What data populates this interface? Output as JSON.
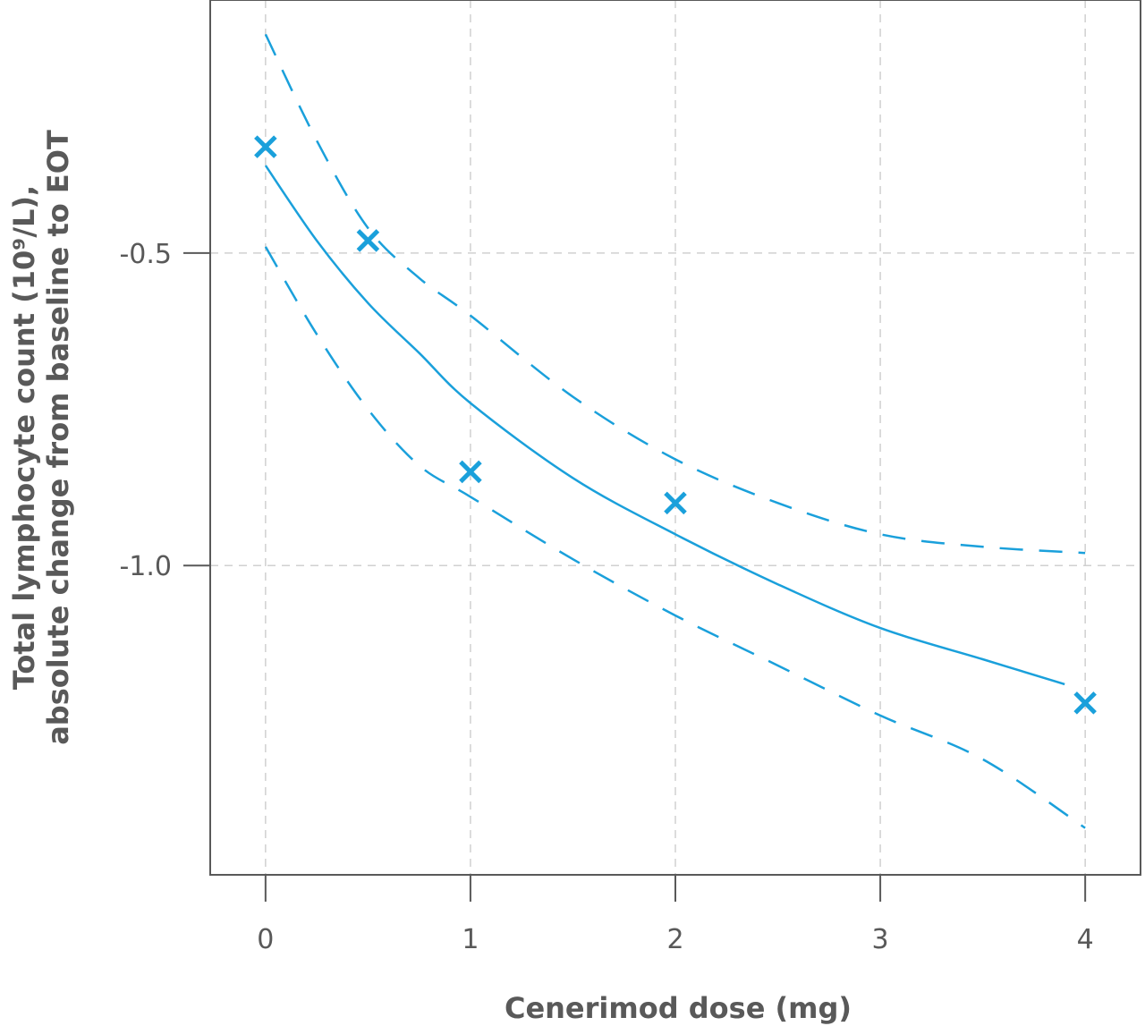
{
  "chart_data": {
    "type": "line",
    "xlabel": "Cenerimod dose (mg)",
    "ylabel": {
      "line1": "Total lymphocyte count (10⁹/L),",
      "line2": "absolute change from baseline to EOT"
    },
    "xlim": [
      -0.27,
      4.27
    ],
    "ylim": [
      -1.495,
      -0.095
    ],
    "x_ticks": [
      0,
      1,
      2,
      3,
      4
    ],
    "x_tick_labels": [
      "0",
      "1",
      "2",
      "3",
      "4"
    ],
    "y_ticks": [
      -0.5,
      -1.0
    ],
    "y_tick_labels": [
      "-0.5",
      "-1.0"
    ],
    "grid": true,
    "colors": {
      "series": "#1aa0db",
      "axis": "#595959",
      "grid": "#d0d0d0"
    },
    "observed": {
      "marker": "x",
      "x": [
        0,
        0.5,
        1,
        2,
        4
      ],
      "y": [
        -0.33,
        -0.48,
        -0.85,
        -0.9,
        -1.22
      ]
    },
    "fit": {
      "style": "solid",
      "x": [
        0,
        0.25,
        0.5,
        0.75,
        1,
        1.5,
        2,
        2.5,
        3,
        3.5,
        3.9
      ],
      "y": [
        -0.36,
        -0.48,
        -0.58,
        -0.66,
        -0.74,
        -0.86,
        -0.95,
        -1.03,
        -1.1,
        -1.15,
        -1.19
      ]
    },
    "ci_upper": {
      "style": "dashed",
      "x": [
        0,
        0.25,
        0.5,
        0.75,
        1,
        1.5,
        2,
        2.5,
        3,
        3.5,
        4
      ],
      "y": [
        -0.15,
        -0.32,
        -0.46,
        -0.54,
        -0.6,
        -0.73,
        -0.83,
        -0.9,
        -0.95,
        -0.97,
        -0.98
      ]
    },
    "ci_lower": {
      "style": "dashed",
      "x": [
        0,
        0.25,
        0.5,
        0.75,
        1,
        1.5,
        2,
        2.5,
        3,
        3.5,
        4
      ],
      "y": [
        -0.49,
        -0.63,
        -0.75,
        -0.84,
        -0.89,
        -0.99,
        -1.08,
        -1.16,
        -1.24,
        -1.31,
        -1.42
      ]
    }
  }
}
